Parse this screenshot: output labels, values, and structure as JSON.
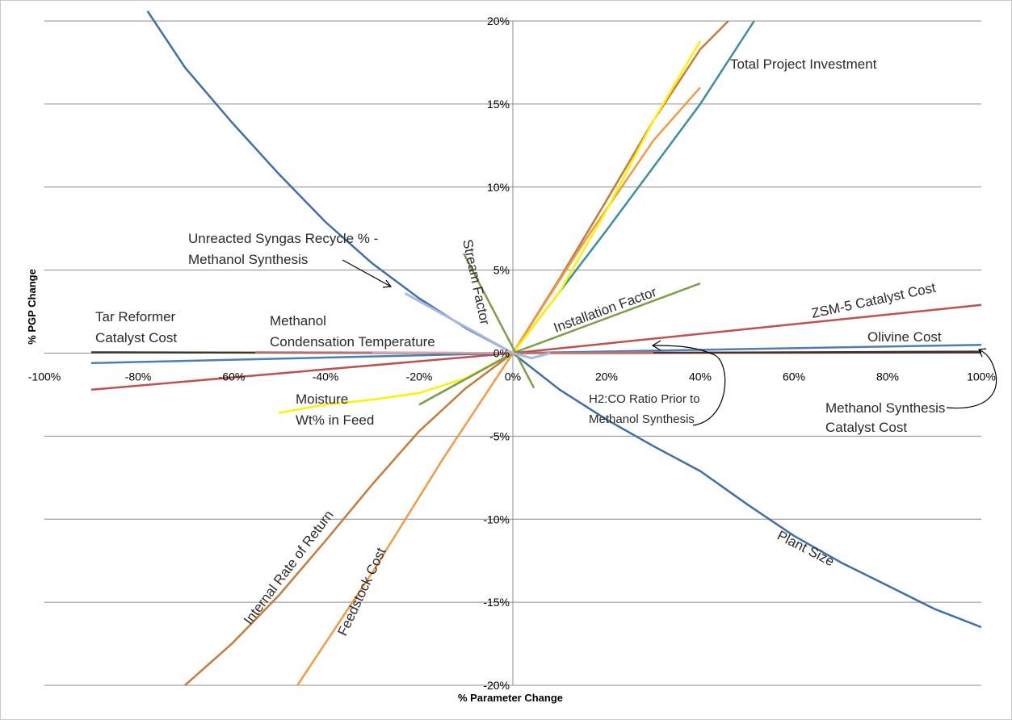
{
  "chart_data": {
    "type": "line",
    "title": "",
    "xlabel": "% Parameter Change",
    "ylabel": "% PGP Change",
    "xlim": [
      -100,
      100
    ],
    "ylim": [
      -20,
      20
    ],
    "grid": "horizontal",
    "legend": "none",
    "x_ticks": [
      {
        "v": -100,
        "label": "-100%"
      },
      {
        "v": -80,
        "label": "-80%"
      },
      {
        "v": -60,
        "label": "-60%"
      },
      {
        "v": -40,
        "label": "-40%"
      },
      {
        "v": -20,
        "label": "-20%"
      },
      {
        "v": 0,
        "label": "0%"
      },
      {
        "v": 20,
        "label": "20%"
      },
      {
        "v": 40,
        "label": "40%"
      },
      {
        "v": 60,
        "label": "60%"
      },
      {
        "v": 80,
        "label": "80%"
      },
      {
        "v": 100,
        "label": "100%"
      }
    ],
    "y_ticks": [
      {
        "v": 20,
        "label": "20%"
      },
      {
        "v": 15,
        "label": "15%"
      },
      {
        "v": 10,
        "label": "10%"
      },
      {
        "v": 5,
        "label": "5%"
      },
      {
        "v": 0,
        "label": "0%"
      },
      {
        "v": -5,
        "label": "-5%"
      },
      {
        "v": -10,
        "label": "-10%"
      },
      {
        "v": -15,
        "label": "-15%"
      },
      {
        "v": -20,
        "label": "-20%"
      }
    ],
    "series": [
      {
        "name": "Plant Size",
        "color": "#3f6faa",
        "width": 2.5,
        "x": [
          -78,
          -70,
          -60,
          -50,
          -40,
          -30,
          -20,
          -10,
          0,
          10,
          20,
          30,
          40,
          50,
          60,
          70,
          80,
          90,
          100
        ],
        "y": [
          20.6,
          17.2,
          13.9,
          10.8,
          7.9,
          5.4,
          3.3,
          1.5,
          0,
          -2.2,
          -4.0,
          -5.6,
          -7.1,
          -9.1,
          -11.0,
          -12.6,
          -14.0,
          -15.4,
          -16.5
        ]
      },
      {
        "name": "Total Project Investment",
        "color": "#3b8fa0",
        "width": 2.5,
        "x": [
          -20,
          0,
          20,
          40,
          51.5
        ],
        "y": [
          -3.1,
          0,
          7.4,
          15.0,
          20.0
        ]
      },
      {
        "name": "Internal Rate of Return",
        "color": "#c57b3c",
        "width": 2.5,
        "x": [
          -70,
          -60,
          -50,
          -40,
          -30,
          -20,
          -10,
          0,
          10,
          20,
          30,
          40,
          46
        ],
        "y": [
          -20.0,
          -17.5,
          -14.6,
          -11.3,
          -7.9,
          -4.7,
          -2.1,
          0,
          4.5,
          9.2,
          14.0,
          18.3,
          20.0
        ]
      },
      {
        "name": "Feedstock Cost",
        "color": "#f39a45",
        "width": 2.5,
        "x": [
          -46,
          -30,
          -15,
          0,
          15,
          30,
          40
        ],
        "y": [
          -20.0,
          -13.2,
          -6.4,
          0,
          6.6,
          12.8,
          16.0
        ]
      },
      {
        "name": "Moisture Wt% in Feed",
        "color": "#fff200",
        "width": 2.5,
        "x": [
          -50,
          -40,
          -30,
          -20,
          -10,
          0,
          10,
          20,
          30,
          40
        ],
        "y": [
          -3.6,
          -3.1,
          -2.8,
          -2.4,
          -1.5,
          0,
          3.7,
          8.6,
          14.0,
          18.8
        ]
      },
      {
        "name": "Stream Factor",
        "color": "#7c9e46",
        "width": 2.5,
        "x": [
          -10.5,
          4.5
        ],
        "y": [
          6.0,
          -2.1
        ]
      },
      {
        "name": "Installation Factor",
        "color": "#7c9e46",
        "width": 2.5,
        "x": [
          -20,
          0,
          40
        ],
        "y": [
          -3.1,
          0,
          4.2
        ]
      },
      {
        "name": "ZSM-5 Catalyst Cost",
        "color": "#c0504d",
        "width": 2.5,
        "x": [
          -90,
          0,
          100
        ],
        "y": [
          -2.2,
          0,
          2.9
        ]
      },
      {
        "name": "Olivine Cost",
        "color": "#4a7ebb",
        "width": 2.5,
        "x": [
          -90,
          0,
          100
        ],
        "y": [
          -0.6,
          0,
          0.5
        ]
      },
      {
        "name": "Tar Reformer Catalyst Cost",
        "color": "#3a3a2a",
        "width": 2.5,
        "x": [
          -90,
          0,
          100
        ],
        "y": [
          0.05,
          0,
          0.05
        ]
      },
      {
        "name": "Methanol Synthesis Catalyst Cost",
        "color": "#5a2a2a",
        "width": 2.0,
        "x": [
          0,
          100
        ],
        "y": [
          0,
          0.1
        ]
      },
      {
        "name": "H2:CO Ratio Prior to Methanol Synthesis",
        "color": "#c07070",
        "width": 2.5,
        "x": [
          -55,
          -30,
          0,
          30
        ],
        "y": [
          0.05,
          0.04,
          0,
          0.05
        ]
      },
      {
        "name": "Unreacted Syngas Recycle % - Methanol Synthesis",
        "color": "#a9b8dd",
        "width": 3,
        "x": [
          -23,
          0,
          4,
          8
        ],
        "y": [
          3.6,
          0,
          -0.3,
          0
        ]
      },
      {
        "name": "Methanol Condensation Temperature",
        "color": "#d8a8a8",
        "width": 2.5,
        "x": [
          -30,
          0
        ],
        "y": [
          0.05,
          0
        ]
      }
    ],
    "labels": {
      "unreacted_line1": "Unreacted Syngas Recycle % -",
      "unreacted_line2": "Methanol Synthesis",
      "tar_line1": "Tar Reformer",
      "tar_line2": "Catalyst Cost",
      "condensation_line1": "Methanol",
      "condensation_line2": "Condensation Temperature",
      "moisture_line1": "Moisture",
      "moisture_line2": "Wt% in Feed",
      "stream_factor": "Stream Factor",
      "installation_factor": "Installation Factor",
      "zsm5": "ZSM-5 Catalyst Cost",
      "olivine": "Olivine Cost",
      "h2co_line1": "H2:CO Ratio Prior to",
      "h2co_line2": "Methanol Synthesis",
      "msc_line1": "Methanol Synthesis",
      "msc_line2": "Catalyst Cost",
      "total_investment": "Total Project Investment",
      "plant_size": "Plant Size",
      "irr": "Internal Rate of Return",
      "feedstock": "Feedstock Cost"
    }
  }
}
